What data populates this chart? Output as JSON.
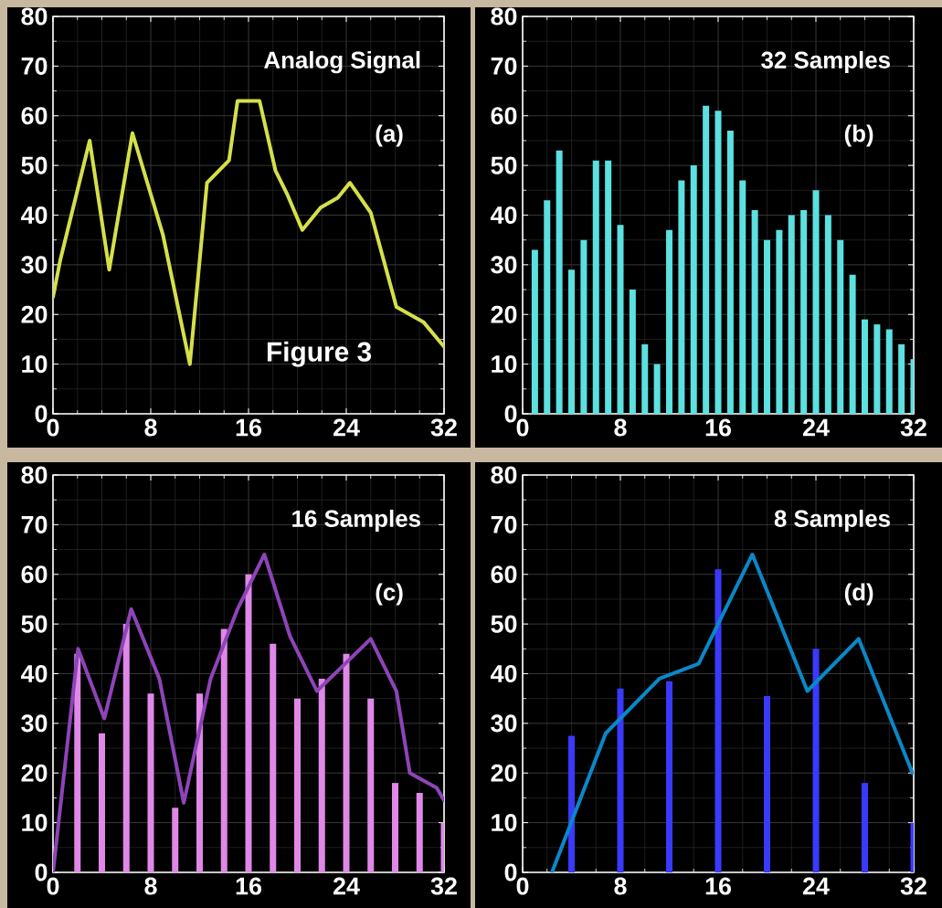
{
  "chart_data": [
    {
      "type": "line",
      "title": "Analog Signal",
      "annotations": [
        "(a)",
        "Figure 3"
      ],
      "xlim": [
        0,
        32
      ],
      "ylim": [
        0,
        80
      ],
      "xticks": [
        0,
        8,
        16,
        24,
        32
      ],
      "yticks": [
        0,
        10,
        20,
        30,
        40,
        50,
        60,
        70,
        80
      ],
      "grid": true,
      "series": [
        {
          "color": "#d4e04a",
          "x": [
            0,
            0.6,
            3.0,
            4.6,
            6.5,
            9.0,
            11.2,
            12.6,
            14.4,
            15.1,
            16.9,
            18.2,
            19.2,
            20.4,
            21.9,
            23.3,
            24.3,
            26.0,
            28.1,
            30.3,
            32
          ],
          "values": [
            23.5,
            31,
            55,
            29,
            56.5,
            36,
            10,
            46.5,
            51,
            63,
            63,
            49,
            44,
            37,
            41.5,
            43.5,
            46.5,
            40.5,
            21.5,
            18.5,
            13.5
          ]
        }
      ]
    },
    {
      "type": "bar",
      "title": "32 Samples",
      "annotations": [
        "(b)"
      ],
      "xlim": [
        0,
        32
      ],
      "ylim": [
        0,
        80
      ],
      "xticks": [
        0,
        8,
        16,
        24,
        32
      ],
      "yticks": [
        0,
        10,
        20,
        30,
        40,
        50,
        60,
        70,
        80
      ],
      "grid": true,
      "series": [
        {
          "color": "#5ce0e0",
          "x": [
            1,
            2,
            3,
            4,
            5,
            6,
            7,
            8,
            9,
            10,
            11,
            12,
            13,
            14,
            15,
            16,
            17,
            18,
            19,
            20,
            21,
            22,
            23,
            24,
            25,
            26,
            27,
            28,
            29,
            30,
            31,
            32
          ],
          "values": [
            33,
            43,
            53,
            29,
            35,
            51,
            51,
            38,
            25,
            14,
            10,
            37,
            47,
            50,
            62,
            61,
            57,
            47,
            41,
            35,
            37,
            40,
            41,
            45,
            40,
            35,
            28,
            19,
            18,
            17,
            14,
            11
          ]
        }
      ]
    },
    {
      "type": "bar",
      "title": "16 Samples",
      "annotations": [
        "(c)"
      ],
      "xlim": [
        0,
        32
      ],
      "ylim": [
        0,
        80
      ],
      "xticks": [
        0,
        8,
        16,
        24,
        32
      ],
      "yticks": [
        0,
        10,
        20,
        30,
        40,
        50,
        60,
        70,
        80
      ],
      "grid": true,
      "series": [
        {
          "color": "#e088e8",
          "x": [
            2,
            4,
            6,
            8,
            10,
            12,
            14,
            16,
            18,
            20,
            22,
            24,
            26,
            28,
            30,
            32
          ],
          "values": [
            44,
            28,
            50,
            36,
            13,
            36,
            49,
            60,
            46,
            35,
            39,
            44,
            35,
            18,
            16,
            10
          ]
        },
        {
          "type": "line",
          "color": "#8e44b8",
          "x": [
            0,
            2.05,
            4.2,
            6.4,
            8.7,
            10.7,
            12.9,
            15.1,
            17.3,
            19.4,
            21.6,
            26.0,
            28.1,
            29.2,
            31.4,
            32
          ],
          "values": [
            0,
            45,
            31,
            53,
            39,
            14,
            39,
            53,
            64,
            47.5,
            36.5,
            47,
            36.5,
            20,
            17,
            14.5
          ]
        }
      ]
    },
    {
      "type": "bar",
      "title": "8 Samples",
      "annotations": [
        "(d)"
      ],
      "xlim": [
        0,
        32
      ],
      "ylim": [
        0,
        80
      ],
      "xticks": [
        0,
        8,
        16,
        24,
        32
      ],
      "yticks": [
        0,
        10,
        20,
        30,
        40,
        50,
        60,
        70,
        80
      ],
      "grid": true,
      "series": [
        {
          "color": "#3a3aff",
          "x": [
            4,
            8,
            12,
            16,
            20,
            24,
            28,
            32
          ],
          "values": [
            27.5,
            37,
            38.5,
            61,
            35.5,
            45,
            18,
            10
          ]
        },
        {
          "type": "line",
          "color": "#0a88c8",
          "x": [
            2.4,
            6.8,
            11.2,
            14.4,
            18.8,
            23.3,
            27.5,
            31.9
          ],
          "values": [
            0,
            28,
            39,
            42,
            64,
            36.5,
            47,
            20
          ]
        }
      ]
    }
  ]
}
